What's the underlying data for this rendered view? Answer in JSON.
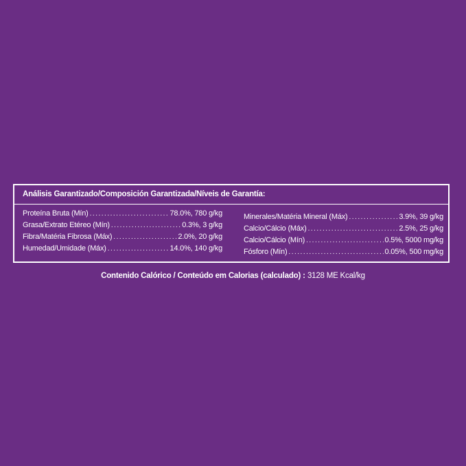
{
  "panel": {
    "title": "Análisis Garantizado/Composición Garantizada/Níveis de Garantía:",
    "left_rows": [
      {
        "name": "Proteína Bruta (Mín)",
        "value": "78.0%, 780 g/kg"
      },
      {
        "name": "Grasa/Extrato Etéreo (Mín)",
        "value": "0.3%, 3 g/kg"
      },
      {
        "name": "Fibra/Matéria Fibrosa (Máx)",
        "value": "2.0%, 20 g/kg"
      },
      {
        "name": "Humedad/Umidade (Máx)",
        "value": "14.0%, 140 g/kg"
      }
    ],
    "right_rows": [
      {
        "name": "Minerales/Matéria Mineral (Máx)",
        "value": "3.9%, 39 g/kg"
      },
      {
        "name": "Calcio/Cálcio (Máx)",
        "value": "2.5%, 25 g/kg"
      },
      {
        "name": "Calcio/Cálcio (Mín)",
        "value": "0.5%, 5000 mg/kg"
      },
      {
        "name": "Fósforo (Mín)",
        "value": "0.05%, 500 mg/kg"
      }
    ]
  },
  "caloric": {
    "label": "Contenido Calórico / Conteúdo em Calorias (calculado) :",
    "value": "3128 ME Kcal/kg"
  },
  "colors": {
    "background": "#6a2d84",
    "text": "#ffffff"
  }
}
